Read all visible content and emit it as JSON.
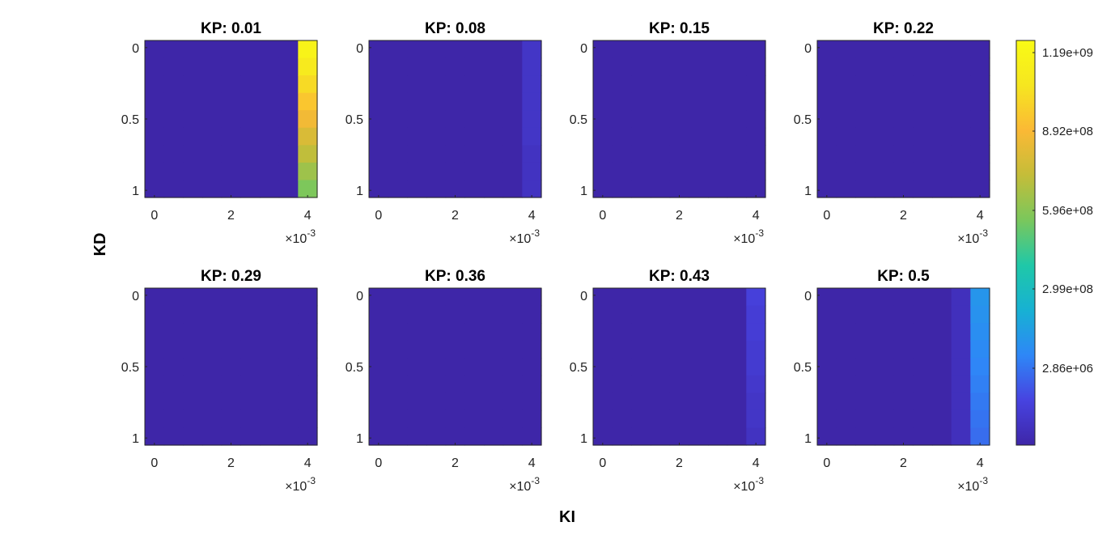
{
  "chart_data": {
    "type": "heatmap",
    "xlabel": "KI",
    "ylabel": "KD",
    "x_tick_labels": [
      "0",
      "2",
      "4"
    ],
    "x_multiplier": {
      "base": "×10",
      "exponent": "-3"
    },
    "y_tick_labels": [
      "0",
      "0.5",
      "1"
    ],
    "x_range": [
      -0.00025,
      0.00425
    ],
    "y_range": [
      -0.05,
      1.05
    ],
    "colorbar": {
      "tick_labels": [
        "1.19e+09",
        "8.92e+08",
        "5.96e+08",
        "2.99e+08",
        "2.86e+06"
      ],
      "colormap": "parula",
      "colors": [
        "#3e26a8",
        "#4743e0",
        "#2e87f7",
        "#17b1d3",
        "#1fc8a8",
        "#7ac75c",
        "#c4bd39",
        "#fbb935",
        "#f6e620",
        "#f9fb15"
      ]
    },
    "panels": [
      {
        "title": "KP: 0.01",
        "last_column_levels": [
          0.96,
          0.91,
          0.86,
          0.81,
          0.76,
          0.71,
          0.66,
          0.61,
          0.56
        ]
      },
      {
        "title": "KP: 0.08",
        "last_column_levels": [
          0.06,
          0.06,
          0.06,
          0.06,
          0.06,
          0.06,
          0.05,
          0.05,
          0.05
        ]
      },
      {
        "title": "KP: 0.15",
        "last_column_levels": [
          0,
          0,
          0,
          0,
          0,
          0,
          0,
          0,
          0
        ]
      },
      {
        "title": "KP: 0.22",
        "last_column_levels": [
          0,
          0,
          0,
          0,
          0,
          0,
          0,
          0,
          0
        ]
      },
      {
        "title": "KP: 0.29",
        "last_column_levels": [
          0,
          0,
          0,
          0,
          0,
          0,
          0,
          0,
          0
        ]
      },
      {
        "title": "KP: 0.36",
        "last_column_levels": [
          0,
          0,
          0,
          0,
          0,
          0,
          0,
          0,
          0
        ]
      },
      {
        "title": "KP: 0.43",
        "last_column_levels": [
          0.1,
          0.09,
          0.09,
          0.08,
          0.08,
          0.07,
          0.06,
          0.06,
          0.05
        ]
      },
      {
        "title": "KP: 0.5",
        "second_last_column_levels": [
          0.04,
          0.04,
          0.04,
          0.04,
          0.04,
          0.04,
          0.04,
          0.04,
          0.04
        ],
        "last_column_levels": [
          0.26,
          0.25,
          0.24,
          0.23,
          0.22,
          0.21,
          0.2,
          0.19,
          0.18
        ]
      }
    ]
  }
}
